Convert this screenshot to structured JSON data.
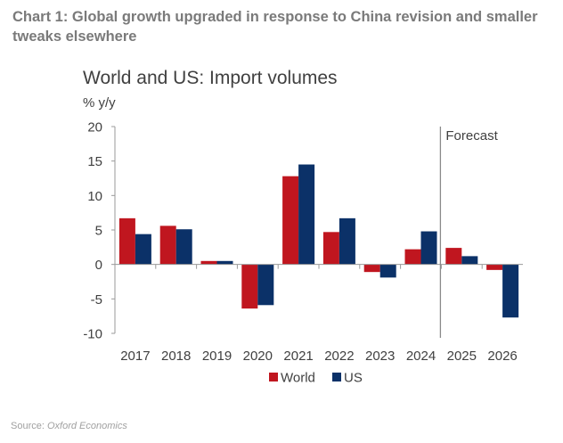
{
  "document": {
    "heading": "Chart 1: Global growth upgraded in response to China revision and smaller tweaks elsewhere",
    "source_label": "Source:",
    "source_name": "Oxford Economics"
  },
  "chart_data": {
    "type": "bar",
    "title": "World and US: Import volumes",
    "ylabel": "% y/y",
    "xlabel": "",
    "ylim": [
      -10,
      20
    ],
    "yticks": [
      20,
      15,
      10,
      5,
      0,
      -5,
      -10
    ],
    "categories": [
      "2017",
      "2018",
      "2019",
      "2020",
      "2021",
      "2022",
      "2023",
      "2024",
      "2025",
      "2026"
    ],
    "series": [
      {
        "name": "World",
        "color": "#C0161F",
        "values": [
          6.7,
          5.6,
          0.5,
          -6.4,
          12.8,
          4.7,
          -1.1,
          2.2,
          2.4,
          -0.8
        ]
      },
      {
        "name": "US",
        "color": "#0B3168",
        "values": [
          4.4,
          5.1,
          0.5,
          -5.9,
          14.5,
          6.7,
          -1.9,
          4.8,
          1.2,
          -7.7
        ]
      }
    ],
    "annotations": [
      {
        "text": "Forecast",
        "position": "between 2024 and 2025"
      }
    ],
    "legend": "bottom-center",
    "grid": false
  }
}
